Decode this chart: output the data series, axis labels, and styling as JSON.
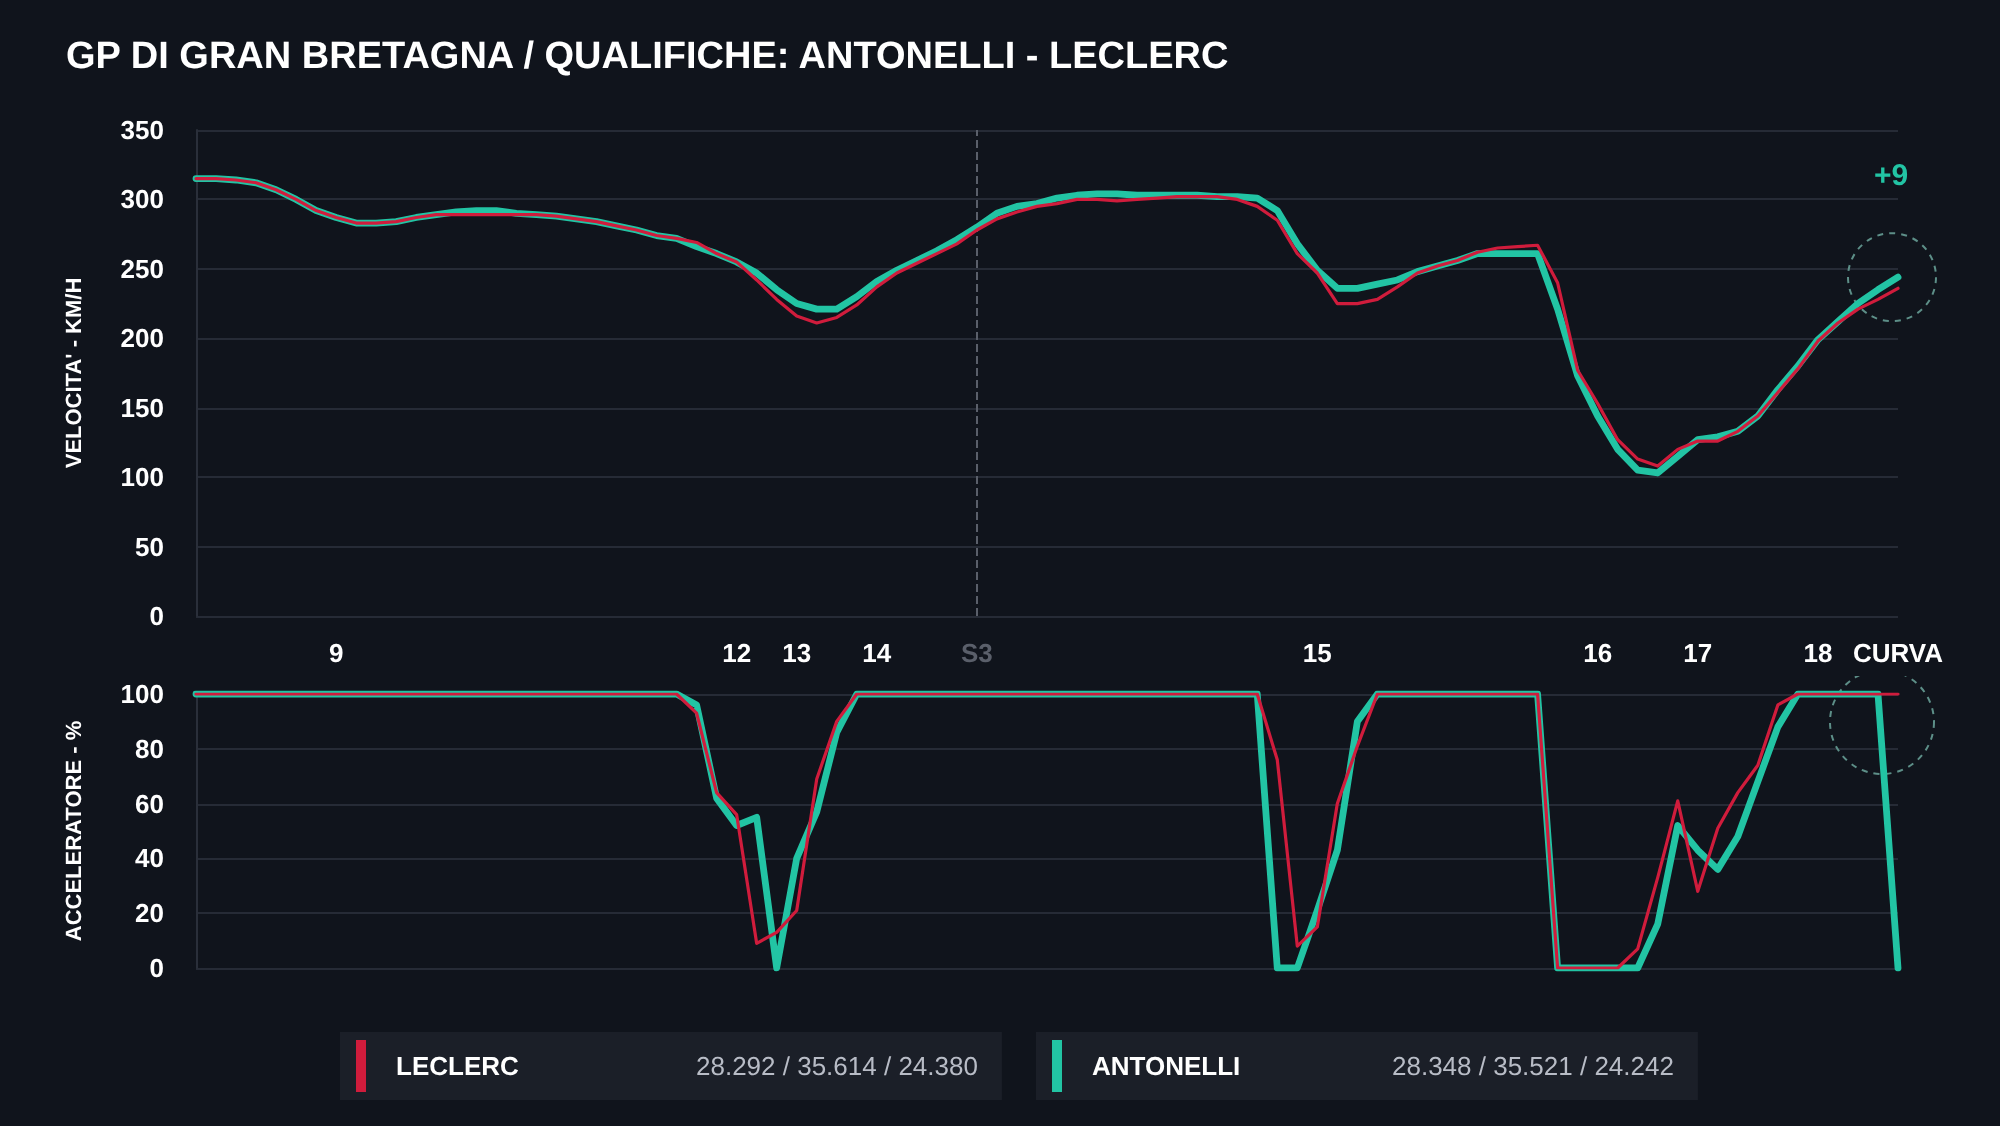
{
  "chart_data": [
    {
      "type": "line",
      "title": "GP DI GRAN BRETAGNA / QUALIFICHE: ANTONELLI - LECLERC",
      "ylabel": "VELOCITA' - KM/H",
      "categories": [
        null,
        null,
        null,
        null,
        null,
        null,
        null,
        "9",
        null,
        null,
        null,
        null,
        null,
        null,
        null,
        null,
        null,
        null,
        null,
        null,
        null,
        null,
        null,
        null,
        null,
        null,
        null,
        "12",
        null,
        null,
        "13",
        null,
        null,
        null,
        "14",
        null,
        null,
        null,
        null,
        "S3",
        null,
        null,
        null,
        null,
        null,
        null,
        null,
        null,
        null,
        null,
        null,
        null,
        null,
        null,
        null,
        null,
        "15",
        null,
        null,
        null,
        null,
        null,
        null,
        null,
        null,
        null,
        null,
        null,
        null,
        null,
        "16",
        null,
        null,
        null,
        null,
        "17",
        null,
        null,
        null,
        null,
        null,
        "18",
        null,
        null,
        null,
        "CURVA"
      ],
      "series": [
        {
          "color": "#d01c3c",
          "values": [
            315,
            315,
            314,
            312,
            307,
            300,
            292,
            287,
            283,
            283,
            284,
            287,
            289,
            289,
            289,
            289,
            289,
            289,
            288,
            286,
            284,
            281,
            278,
            274,
            272,
            269,
            261,
            255,
            242,
            228,
            216,
            211,
            215,
            224,
            237,
            247,
            254,
            261,
            268,
            278,
            286,
            291,
            295,
            297,
            300,
            300,
            299,
            300,
            301,
            302,
            302,
            302,
            300,
            295,
            285,
            261,
            247,
            225,
            225,
            228,
            237,
            247,
            252,
            256,
            262,
            265,
            266,
            267,
            240,
            177,
            153,
            127,
            113,
            108,
            120,
            126,
            126,
            133,
            144,
            161,
            178,
            198,
            211,
            221,
            228,
            236
          ]
        },
        {
          "color": "#22c4a4",
          "values": [
            315,
            315,
            314,
            312,
            307,
            300,
            292,
            287,
            283,
            283,
            284,
            287,
            289,
            291,
            292,
            292,
            290,
            289,
            288,
            286,
            284,
            281,
            278,
            274,
            272,
            266,
            261,
            255,
            247,
            235,
            225,
            221,
            221,
            230,
            241,
            249,
            256,
            263,
            271,
            280,
            290,
            295,
            297,
            301,
            303,
            304,
            304,
            303,
            303,
            303,
            303,
            302,
            302,
            301,
            292,
            268,
            249,
            236,
            236,
            239,
            242,
            248,
            252,
            256,
            261,
            261,
            261,
            261,
            221,
            173,
            144,
            120,
            105,
            103,
            115,
            127,
            129,
            133,
            144,
            163,
            180,
            199,
            212,
            225,
            235,
            244
          ]
        }
      ],
      "ylim": [
        0,
        350
      ],
      "yticks": [
        0,
        50,
        100,
        150,
        200,
        250,
        300,
        350
      ],
      "grid": "y",
      "marker": "none",
      "line_style": "solid",
      "ref_lines": [
        {
          "axis": "x",
          "value": "S3",
          "color": "#5a5f6a",
          "line_style": "dashed"
        }
      ],
      "annotations": [
        {
          "text": "+9",
          "x": "CURVA",
          "y": 244
        }
      ]
    },
    {
      "type": "line",
      "ylabel": "ACCELERATORE - %",
      "categories": [
        null,
        null,
        null,
        null,
        null,
        null,
        null,
        null,
        null,
        null,
        null,
        null,
        null,
        null,
        null,
        null,
        null,
        null,
        null,
        null,
        null,
        null,
        null,
        null,
        null,
        null,
        null,
        null,
        null,
        null,
        null,
        null,
        null,
        null,
        null,
        null,
        null,
        null,
        null,
        null,
        null,
        null,
        null,
        null,
        null,
        null,
        null,
        null,
        null,
        null,
        null,
        null,
        null,
        null,
        null,
        null,
        null,
        null,
        null,
        null,
        null,
        null,
        null,
        null,
        null,
        null,
        null,
        null,
        null,
        null,
        null,
        null,
        null,
        null,
        null,
        null,
        null,
        null,
        null,
        null,
        null,
        null,
        null,
        null,
        null,
        null
      ],
      "tick_labels": "y",
      "series": [
        {
          "name": "LECLERC",
          "color": "#d01c3c",
          "values": [
            100,
            100,
            100,
            100,
            100,
            100,
            100,
            100,
            100,
            100,
            100,
            100,
            100,
            100,
            100,
            100,
            100,
            100,
            100,
            100,
            100,
            100,
            100,
            100,
            100,
            93,
            64,
            56,
            9,
            13,
            21,
            69,
            90,
            100,
            100,
            100,
            100,
            100,
            100,
            100,
            100,
            100,
            100,
            100,
            100,
            100,
            100,
            100,
            100,
            100,
            100,
            100,
            100,
            100,
            76,
            8,
            15,
            60,
            81,
            100,
            100,
            100,
            100,
            100,
            100,
            100,
            100,
            100,
            0,
            0,
            0,
            0,
            7,
            33,
            61,
            28,
            51,
            64,
            74,
            96,
            100,
            100,
            100,
            100,
            100,
            100
          ]
        },
        {
          "name": "ANTONELLI",
          "color": "#22c4a4",
          "values": [
            100,
            100,
            100,
            100,
            100,
            100,
            100,
            100,
            100,
            100,
            100,
            100,
            100,
            100,
            100,
            100,
            100,
            100,
            100,
            100,
            100,
            100,
            100,
            100,
            100,
            96,
            62,
            52,
            55,
            0,
            40,
            57,
            86,
            100,
            100,
            100,
            100,
            100,
            100,
            100,
            100,
            100,
            100,
            100,
            100,
            100,
            100,
            100,
            100,
            100,
            100,
            100,
            100,
            100,
            0,
            0,
            21,
            43,
            90,
            100,
            100,
            100,
            100,
            100,
            100,
            100,
            100,
            100,
            0,
            0,
            0,
            0,
            0,
            16,
            52,
            43,
            36,
            48,
            68,
            88,
            100,
            100,
            100,
            100,
            100,
            0
          ]
        }
      ],
      "ylim": [
        0,
        100
      ],
      "yticks": [
        0,
        20,
        40,
        60,
        80,
        100
      ],
      "grid": "y",
      "marker": "none",
      "line_style": "solid",
      "legend": "bottom",
      "annotations": [
        "28.292 / 35.614 / 24.380",
        "28.348 / 35.521 / 24.242"
      ]
    }
  ]
}
